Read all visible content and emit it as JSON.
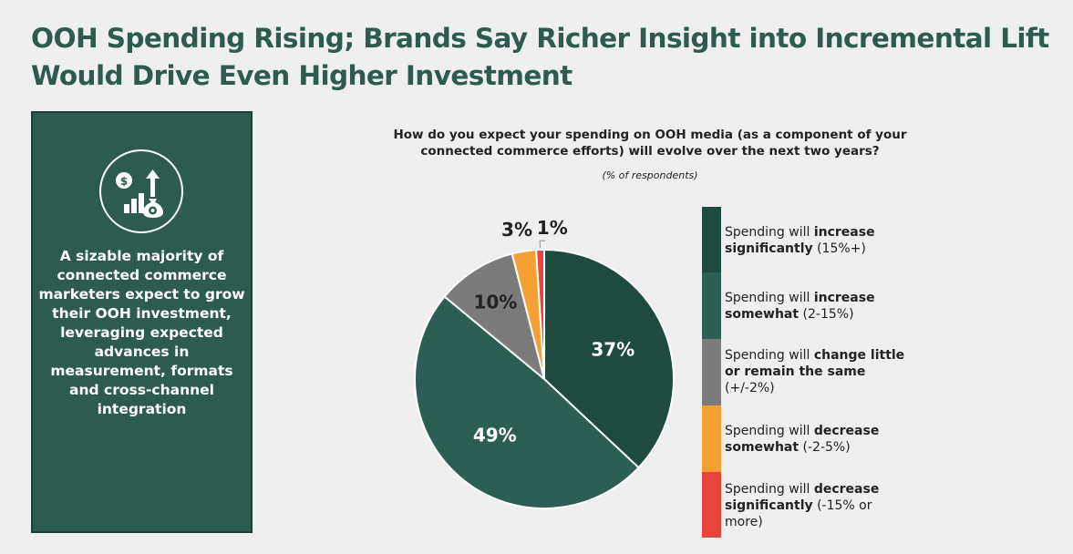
{
  "headline": {
    "line1": "OOH Spending Rising; Brands Say Richer Insight into Incremental Lift",
    "line2": "Would Drive Even Higher Investment"
  },
  "side_panel": {
    "icon": "money-growth-chart-icon",
    "text": "A sizable majority of connected commerce marketers expect to grow their OOH investment, leveraging expected advances in measurement, formats and cross-channel integration"
  },
  "chart_data": {
    "type": "pie",
    "title": "How do you expect your spending on OOH media (as a component of your connected commerce efforts) will evolve over the next two years?",
    "subtitle": "(% of respondents)",
    "slices": [
      {
        "legend_pre": "Spending will ",
        "legend_bold": "increase significantly",
        "legend_post": " (15%+)",
        "value": 37,
        "label": "37%",
        "color": "#1f4a40"
      },
      {
        "legend_pre": "Spending will ",
        "legend_bold": "increase somewhat",
        "legend_post": " (2-15%)",
        "value": 49,
        "label": "49%",
        "color": "#2d5e53"
      },
      {
        "legend_pre": "Spending will ",
        "legend_bold": "change little or remain the same",
        "legend_post": " (+/-2%)",
        "value": 10,
        "label": "10%",
        "color": "#7b7b7b"
      },
      {
        "legend_pre": "Spending will ",
        "legend_bold": "decrease somewhat",
        "legend_post": " (-2-5%)",
        "value": 3,
        "label": "3%",
        "color": "#f4a034"
      },
      {
        "legend_pre": "Spending will ",
        "legend_bold": "decrease significantly",
        "legend_post": " (-15% or more)",
        "value": 1,
        "label": "1%",
        "color": "#e8453a"
      }
    ]
  }
}
